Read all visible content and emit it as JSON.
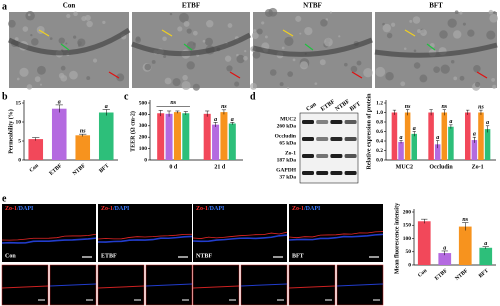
{
  "panels": {
    "a": {
      "label": "a",
      "titles": [
        "Con",
        "ETBF",
        "NTBF",
        "BFT"
      ]
    },
    "b": {
      "label": "b"
    },
    "c": {
      "label": "c"
    },
    "d": {
      "label": "d",
      "blot_columns": [
        "Con",
        "ETBF",
        "NTBF",
        "BFT"
      ],
      "blot_rows": [
        {
          "protein": "MUC2",
          "size": "260 kDa"
        },
        {
          "protein": "Occludin",
          "size": "65 kDa"
        },
        {
          "protein": "Zo-1",
          "size": "187 kDa"
        },
        {
          "protein": "GAPDH",
          "size": "37 kDa"
        }
      ]
    },
    "e": {
      "label": "e",
      "stain": [
        "Zo-1",
        "/DAPI"
      ],
      "titles": [
        "Con",
        "ETBF",
        "NTBF",
        "BFT"
      ]
    }
  },
  "chart_data": [
    {
      "type": "bar",
      "ylabel": "Permeability (%)",
      "categories": [
        "Con",
        "ETBF",
        "NTBF",
        "BFT"
      ],
      "colors": [
        "#f2485a",
        "#b46ae0",
        "#f7931e",
        "#2dbf7a"
      ],
      "values": [
        5.5,
        13.5,
        6.5,
        12.5
      ],
      "errors": [
        0.4,
        1.0,
        0.3,
        0.8
      ],
      "bar_labels": [
        null,
        "a",
        "ns",
        "a"
      ],
      "ylim": [
        0,
        15
      ],
      "yticks": [
        0,
        5,
        10,
        15
      ]
    },
    {
      "type": "grouped_bar",
      "ylabel": "TEER (Ω cm-2)",
      "categories": [
        "0 d",
        "21 d"
      ],
      "series": [
        {
          "color": "#f2485a",
          "values": [
            410,
            405
          ],
          "errors": [
            25,
            25
          ],
          "labels": [
            null,
            null
          ]
        },
        {
          "color": "#b46ae0",
          "values": [
            405,
            310
          ],
          "errors": [
            25,
            20
          ],
          "labels": [
            null,
            "a"
          ]
        },
        {
          "color": "#f7931e",
          "values": [
            420,
            420
          ],
          "errors": [
            10,
            20
          ],
          "labels": [
            null,
            "ns"
          ]
        },
        {
          "color": "#2dbf7a",
          "values": [
            410,
            320
          ],
          "errors": [
            15,
            10
          ],
          "labels": [
            null,
            "a"
          ]
        }
      ],
      "group_labels": [
        "ns",
        null
      ],
      "ylim": [
        0,
        500
      ],
      "yticks": [
        0,
        100,
        200,
        300,
        400,
        500
      ]
    },
    {
      "type": "grouped_bar",
      "ylabel": "Relative expression of protein",
      "categories": [
        "MUC2",
        "Occludin",
        "Zo-1"
      ],
      "series": [
        {
          "color": "#f2485a",
          "values": [
            1.0,
            1.0,
            1.0
          ],
          "errors": [
            0.05,
            0.06,
            0.05
          ],
          "labels": [
            null,
            null,
            null
          ]
        },
        {
          "color": "#b46ae0",
          "values": [
            0.38,
            0.33,
            0.42
          ],
          "errors": [
            0.03,
            0.08,
            0.06
          ],
          "labels": [
            "a",
            "a",
            "a"
          ]
        },
        {
          "color": "#f7931e",
          "values": [
            1.0,
            1.0,
            1.0
          ],
          "errors": [
            0.06,
            0.06,
            0.05
          ],
          "labels": [
            "ns",
            "ns",
            "ns"
          ]
        },
        {
          "color": "#2dbf7a",
          "values": [
            0.55,
            0.7,
            0.65
          ],
          "errors": [
            0.05,
            0.04,
            0.07
          ],
          "labels": [
            "a",
            "a",
            "a"
          ]
        }
      ],
      "group_labels": [
        null,
        null,
        null
      ],
      "ylim": [
        0,
        1.2
      ],
      "yticks": [
        {
          "value": 0,
          "label": "0.0"
        },
        0.2,
        0.4,
        0.6,
        0.8,
        {
          "value": 1,
          "label": "1.0"
        },
        1.2
      ]
    },
    {
      "type": "bar",
      "ylabel": "Mean fluorescence intensity",
      "categories": [
        "Con",
        "ETBF",
        "NTBF",
        "BFT"
      ],
      "colors": [
        "#f2485a",
        "#b46ae0",
        "#f7931e",
        "#2dbf7a"
      ],
      "values": [
        165,
        45,
        145,
        65
      ],
      "errors": [
        8,
        8,
        15,
        4
      ],
      "bar_labels": [
        null,
        "a",
        "ns",
        "a"
      ],
      "ylim": [
        0,
        200
      ],
      "yticks": [
        0,
        50,
        100,
        150,
        200
      ]
    }
  ]
}
